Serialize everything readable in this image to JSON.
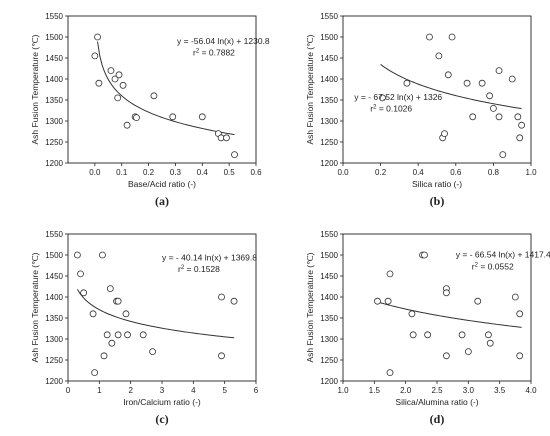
{
  "chart_data": [
    {
      "type": "scatter",
      "panel_label": "(a)",
      "xlabel": "Base/Acid ratio (-)",
      "ylabel": "Ash Fusion Temperature (℃)",
      "xlim": [
        -0.1,
        0.6
      ],
      "ylim": [
        1200,
        1550
      ],
      "xticks": [
        0.0,
        0.1,
        0.2,
        0.3,
        0.4,
        0.5,
        0.6
      ],
      "yticks": [
        1200,
        1250,
        1300,
        1350,
        1400,
        1450,
        1500,
        1550
      ],
      "points": [
        [
          0.0,
          1455
        ],
        [
          0.01,
          1500
        ],
        [
          0.015,
          1390
        ],
        [
          0.06,
          1420
        ],
        [
          0.075,
          1400
        ],
        [
          0.085,
          1355
        ],
        [
          0.09,
          1410
        ],
        [
          0.105,
          1385
        ],
        [
          0.12,
          1290
        ],
        [
          0.15,
          1310
        ],
        [
          0.155,
          1308
        ],
        [
          0.22,
          1360
        ],
        [
          0.29,
          1310
        ],
        [
          0.4,
          1310
        ],
        [
          0.46,
          1270
        ],
        [
          0.47,
          1260
        ],
        [
          0.49,
          1260
        ],
        [
          0.52,
          1220
        ]
      ],
      "fit": {
        "a": -56.04,
        "b": 1230.8,
        "xrange": [
          0.01,
          0.52
        ]
      },
      "equation": "y = -56.04 ln(x) + 1230.8",
      "r2_label": "r",
      "r2_value": " = 0.7882"
    },
    {
      "type": "scatter",
      "panel_label": "(b)",
      "xlabel": "Silica ratio (-)",
      "ylabel": "Ash Fusion Temperature (℃)",
      "xlim": [
        0.0,
        1.0
      ],
      "ylim": [
        1200,
        1550
      ],
      "xticks": [
        0.0,
        0.2,
        0.4,
        0.6,
        0.8,
        1.0
      ],
      "yticks": [
        1200,
        1250,
        1300,
        1350,
        1400,
        1450,
        1500,
        1550
      ],
      "points": [
        [
          0.21,
          1355
        ],
        [
          0.34,
          1390
        ],
        [
          0.46,
          1500
        ],
        [
          0.51,
          1455
        ],
        [
          0.53,
          1260
        ],
        [
          0.54,
          1270
        ],
        [
          0.56,
          1410
        ],
        [
          0.58,
          1500
        ],
        [
          0.66,
          1390
        ],
        [
          0.69,
          1310
        ],
        [
          0.74,
          1390
        ],
        [
          0.78,
          1360
        ],
        [
          0.8,
          1330
        ],
        [
          0.83,
          1420
        ],
        [
          0.83,
          1310
        ],
        [
          0.85,
          1220
        ],
        [
          0.9,
          1400
        ],
        [
          0.93,
          1310
        ],
        [
          0.94,
          1260
        ],
        [
          0.95,
          1290
        ]
      ],
      "fit": {
        "a": -67.52,
        "b": 1326,
        "xrange": [
          0.2,
          0.95
        ]
      },
      "equation": "y = - 67.52 ln(x) + 1326",
      "r2_label": "r",
      "r2_value": " = 0.1026"
    },
    {
      "type": "scatter",
      "panel_label": "(c)",
      "xlabel": "Iron/Calcium ratio (-)",
      "ylabel": "Ash Fusion Temperature (℃)",
      "xlim": [
        0,
        6
      ],
      "ylim": [
        1200,
        1550
      ],
      "xticks": [
        0,
        1,
        2,
        3,
        4,
        5,
        6
      ],
      "yticks": [
        1200,
        1250,
        1300,
        1350,
        1400,
        1450,
        1500,
        1550
      ],
      "points": [
        [
          0.3,
          1500
        ],
        [
          0.4,
          1455
        ],
        [
          0.5,
          1410
        ],
        [
          0.8,
          1360
        ],
        [
          0.85,
          1220
        ],
        [
          1.1,
          1500
        ],
        [
          1.15,
          1260
        ],
        [
          1.25,
          1310
        ],
        [
          1.35,
          1420
        ],
        [
          1.4,
          1290
        ],
        [
          1.55,
          1390
        ],
        [
          1.6,
          1390
        ],
        [
          1.6,
          1310
        ],
        [
          1.85,
          1360
        ],
        [
          1.9,
          1310
        ],
        [
          2.4,
          1310
        ],
        [
          2.7,
          1270
        ],
        [
          4.9,
          1400
        ],
        [
          4.9,
          1260
        ],
        [
          5.3,
          1390
        ]
      ],
      "fit": {
        "a": -40.14,
        "b": 1369.8,
        "xrange": [
          0.3,
          5.3
        ]
      },
      "equation": "y = - 40.14 ln(x) + 1369.8",
      "r2_label": "r",
      "r2_value": " = 0.1528"
    },
    {
      "type": "scatter",
      "panel_label": "(d)",
      "xlabel": "Silica/Alumina ratio (-)",
      "ylabel": "Ash Fusion Temperature (℃)",
      "xlim": [
        1.0,
        4.0
      ],
      "ylim": [
        1200,
        1550
      ],
      "xticks": [
        1.0,
        1.5,
        2.0,
        2.5,
        3.0,
        3.5,
        4.0
      ],
      "yticks": [
        1200,
        1250,
        1300,
        1350,
        1400,
        1450,
        1500,
        1550
      ],
      "points": [
        [
          1.55,
          1390
        ],
        [
          1.72,
          1390
        ],
        [
          1.75,
          1455
        ],
        [
          1.75,
          1220
        ],
        [
          2.1,
          1360
        ],
        [
          2.12,
          1310
        ],
        [
          2.27,
          1500
        ],
        [
          2.3,
          1500
        ],
        [
          2.35,
          1310
        ],
        [
          2.65,
          1420
        ],
        [
          2.65,
          1410
        ],
        [
          2.65,
          1260
        ],
        [
          2.9,
          1310
        ],
        [
          3.0,
          1270
        ],
        [
          3.15,
          1390
        ],
        [
          3.32,
          1310
        ],
        [
          3.35,
          1290
        ],
        [
          3.75,
          1400
        ],
        [
          3.82,
          1360
        ],
        [
          3.82,
          1260
        ]
      ],
      "fit": {
        "a": -66.54,
        "b": 1417.4,
        "xrange": [
          1.55,
          3.85
        ]
      },
      "equation": "y = - 66.54 ln(x) + 1417.4",
      "r2_label": "r",
      "r2_value": " = 0.0552"
    }
  ]
}
